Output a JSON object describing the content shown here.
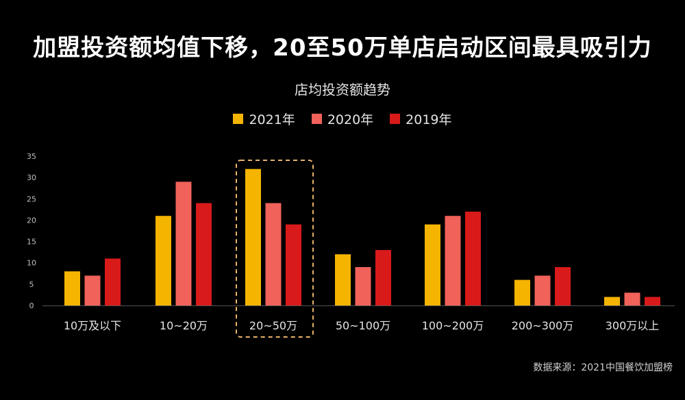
{
  "headline": "加盟投资额均值下移，20至50万单店启动区间最具吸引力",
  "source": "数据来源：2021中国餐饮加盟榜",
  "chart_data": {
    "type": "bar",
    "title": "店均投资额趋势",
    "categories": [
      "10万及以下",
      "10~20万",
      "20~50万",
      "50~100万",
      "100~200万",
      "200~300万",
      "300万以上"
    ],
    "series": [
      {
        "name": "2021年",
        "color": "#f5b400",
        "values": [
          8,
          21,
          32,
          12,
          19,
          6,
          2
        ]
      },
      {
        "name": "2020年",
        "color": "#f0625a",
        "values": [
          7,
          29,
          24,
          9,
          21,
          7,
          3
        ]
      },
      {
        "name": "2019年",
        "color": "#d91a1a",
        "values": [
          11,
          24,
          19,
          13,
          22,
          9,
          2
        ]
      }
    ],
    "y_ticks": [
      0,
      5,
      10,
      15,
      20,
      25,
      30,
      35
    ],
    "ylim": [
      0,
      35
    ],
    "legend_position": "top-center",
    "grid": false,
    "highlight_category": "20~50万",
    "highlight_color": "#e8b36a"
  }
}
